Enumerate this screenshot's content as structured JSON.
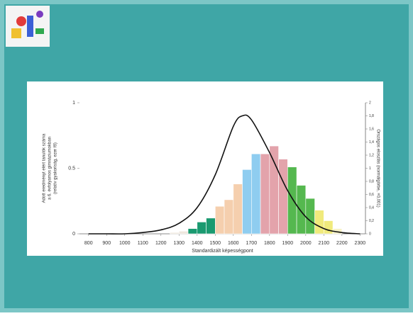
{
  "chart_data": {
    "type": "histogram",
    "y_label": [
      "Adott eredményt elért tanulók száma",
      "a 6. évfolyamos gimnáziumokban",
      "(relatív gyakoriság, ezer fő)"
    ],
    "y2_label": "Országos eloszlás (normálgörbe, ×0,001)",
    "x_label": "Standardizált képességpont",
    "bins": [
      1250,
      1300,
      1350,
      1400,
      1450,
      1500,
      1550,
      1600,
      1650,
      1700,
      1750,
      1800,
      1850,
      1900,
      1950,
      2000,
      2050,
      2100,
      2150,
      2200
    ],
    "values": [
      0.01,
      0.02,
      0.04,
      0.09,
      0.12,
      0.21,
      0.26,
      0.38,
      0.49,
      0.61,
      0.61,
      0.67,
      0.57,
      0.51,
      0.37,
      0.27,
      0.18,
      0.1,
      0.04
    ],
    "colors": [
      "#eee6dc",
      "#eee6dc",
      "#1a9a70",
      "#1a9a70",
      "#1a9a70",
      "#f5cfae",
      "#f5cfae",
      "#f5cfae",
      "#8fcdf0",
      "#8fcdf0",
      "#e3a3ab",
      "#e3a3ab",
      "#e3a3ab",
      "#55b84f",
      "#55b84f",
      "#55b84f",
      "#f0ea7c",
      "#f0ea7c",
      "#f6f1c6"
    ],
    "curve": {
      "type": "line",
      "color": "#111111",
      "x": [
        800,
        900,
        1000,
        1100,
        1200,
        1300,
        1400,
        1500,
        1600,
        1650,
        1700,
        1800,
        1900,
        2000,
        2100,
        2200,
        2300
      ],
      "values": [
        0,
        0,
        0,
        0.01,
        0.03,
        0.08,
        0.2,
        0.45,
        0.82,
        0.9,
        0.87,
        0.62,
        0.33,
        0.13,
        0.04,
        0.01,
        0
      ]
    },
    "xlim": [
      750,
      2330
    ],
    "xticks": [
      800,
      900,
      1000,
      1100,
      1200,
      1300,
      1400,
      1500,
      1600,
      1700,
      1800,
      1900,
      2000,
      2100,
      2200,
      2300
    ],
    "ylim": [
      0,
      1
    ],
    "yticks": [
      0,
      {
        "value": 0.5,
        "label": "0.5"
      },
      1
    ],
    "y2lim": [
      0,
      2
    ],
    "y2ticks": [
      0,
      {
        "value": 0.2,
        "label": "0,2"
      },
      {
        "value": 0.4,
        "label": "0,4"
      },
      {
        "value": 0.6,
        "label": "0,6"
      },
      {
        "value": 0.8,
        "label": "0,8"
      },
      1,
      {
        "value": 1.2,
        "label": "1,2"
      },
      {
        "value": 1.4,
        "label": "1,4"
      },
      {
        "value": 1.6,
        "label": "1,6"
      },
      {
        "value": 1.8,
        "label": "1,8"
      },
      2
    ]
  }
}
